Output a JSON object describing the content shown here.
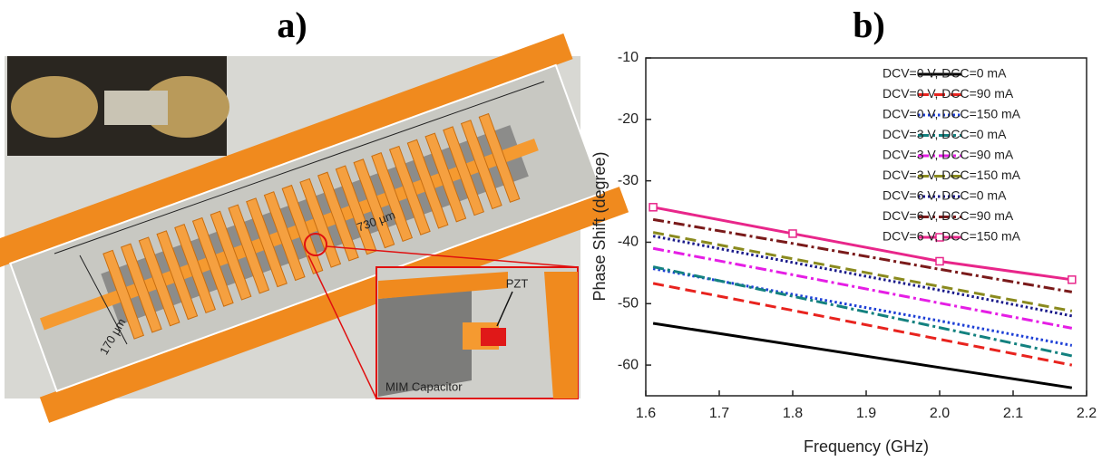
{
  "panel_a": {
    "label": "a)",
    "annotations": [
      "730 µm",
      "170 µm",
      "PZT",
      "MIM Capacitor"
    ]
  },
  "chart_data": {
    "type": "line",
    "panel_label": "b)",
    "x_label": "Frequency (GHz)",
    "y_label": "Phase Shift (degree)",
    "xlim": [
      1.6,
      2.2
    ],
    "ylim": [
      -65,
      -10
    ],
    "xticks": [
      1.6,
      1.7,
      1.8,
      1.9,
      {
        "value": 2,
        "label": "2.0"
      },
      2.1,
      2.2
    ],
    "yticks": [
      -10,
      -20,
      -30,
      -40,
      -50,
      -60
    ],
    "legend": "upper right",
    "x": [
      1.61,
      1.8,
      2.0,
      2.18
    ],
    "series": [
      {
        "name": "DCV=0 V, DCC=0 mA",
        "color": "#000000",
        "style": "solid",
        "values": [
          -53.2,
          -56.7,
          -60.4,
          -63.7
        ]
      },
      {
        "name": "DCV=0 V, DCC=90 mA",
        "color": "#e8231e",
        "style": "dashed",
        "values": [
          -46.7,
          -51.1,
          -55.8,
          -60.0
        ]
      },
      {
        "name": "DCV=0 V, DCC=150 mA",
        "color": "#1d3fd6",
        "style": "dotted",
        "values": [
          -44.3,
          -48.5,
          -52.8,
          -56.8
        ]
      },
      {
        "name": "DCV=3 V, DCC=0 mA",
        "color": "#13817f",
        "style": "dashdot",
        "values": [
          -44.0,
          -48.8,
          -53.9,
          -58.5
        ]
      },
      {
        "name": "DCV=3 V, DCC=90 mA",
        "color": "#e51ee5",
        "style": "dashdot",
        "values": [
          -41.0,
          -45.3,
          -49.9,
          -54.0
        ]
      },
      {
        "name": "DCV=3 V, DCC=150 mA",
        "color": "#8a8a1e",
        "style": "dashed",
        "values": [
          -38.4,
          -42.7,
          -47.2,
          -51.2
        ]
      },
      {
        "name": "DCV=6 V, DCC=0 mA",
        "color": "#1a1a8a",
        "style": "dotted",
        "values": [
          -39.0,
          -43.3,
          -47.8,
          -52.0
        ]
      },
      {
        "name": "DCV=6 V, DCC=90 mA",
        "color": "#7a1a1a",
        "style": "dashdot",
        "values": [
          -36.3,
          -40.2,
          -44.4,
          -48.1
        ]
      },
      {
        "name": "DCV=6 V, DCC=150 mA",
        "color": "#e8268a",
        "style": "solid",
        "marker": "square",
        "values": [
          -34.3,
          -38.6,
          -43.1,
          -46.1
        ]
      }
    ]
  }
}
